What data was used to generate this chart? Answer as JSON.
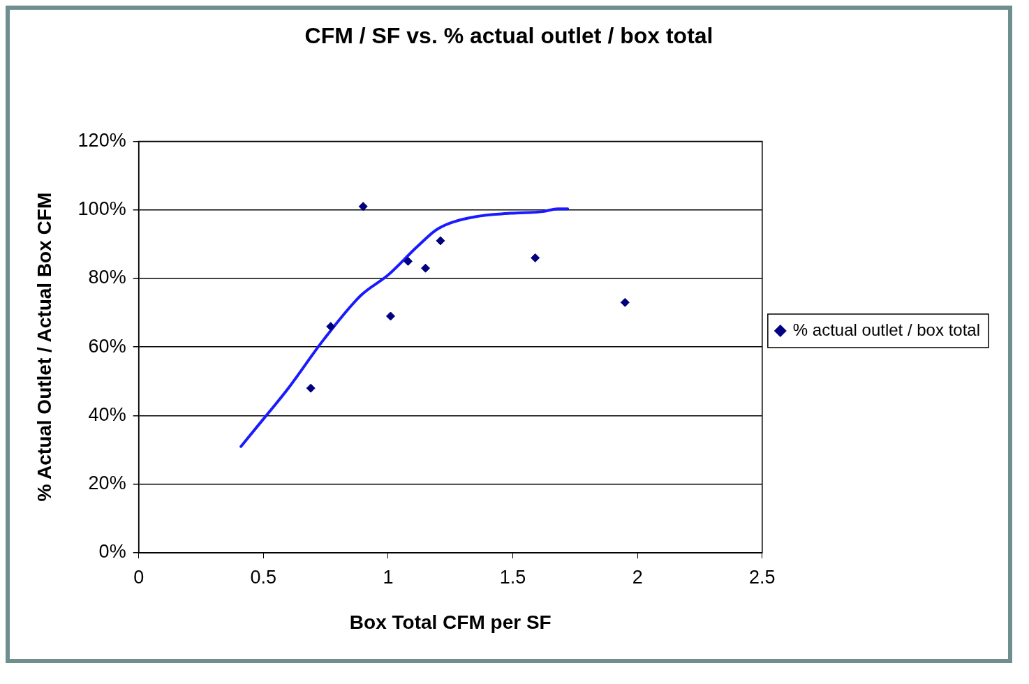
{
  "chart_data": {
    "type": "scatter",
    "title": "CFM / SF vs. % actual outlet / box total",
    "xlabel": "Box Total CFM per SF",
    "ylabel": "% Actual Outlet / Actual Box CFM",
    "xlim": [
      0,
      2.5
    ],
    "xticks": [
      0,
      0.5,
      1,
      1.5,
      2,
      2.5
    ],
    "ylim": [
      0,
      120
    ],
    "yticks": [
      {
        "value": 0,
        "label": "0%"
      },
      {
        "value": 20,
        "label": "20%"
      },
      {
        "value": 40,
        "label": "40%"
      },
      {
        "value": 60,
        "label": "60%"
      },
      {
        "value": 80,
        "label": "80%"
      },
      {
        "value": 100,
        "label": "100%"
      },
      {
        "value": 120,
        "label": "120%"
      }
    ],
    "grid": "y",
    "legend": "right",
    "marker": "diamond",
    "series": [
      {
        "name": "% actual outlet / box total",
        "color": "#000080",
        "x": [
          0.9,
          0.69,
          0.77,
          1.01,
          1.08,
          1.15,
          1.21,
          1.59,
          1.95
        ],
        "values": [
          101,
          48,
          66,
          69,
          85,
          83,
          91,
          86,
          73
        ]
      },
      {
        "type": "line",
        "color": "#1a1aff",
        "marker": "none",
        "x": [
          0.41,
          0.5,
          0.6,
          0.74,
          0.89,
          1.0,
          1.12,
          1.2,
          1.35,
          1.49,
          1.62,
          1.68,
          1.72
        ],
        "values": [
          31,
          39,
          48,
          62,
          75,
          81,
          89.5,
          94.5,
          98,
          99,
          99.5,
          100.3,
          100.3
        ]
      }
    ]
  }
}
